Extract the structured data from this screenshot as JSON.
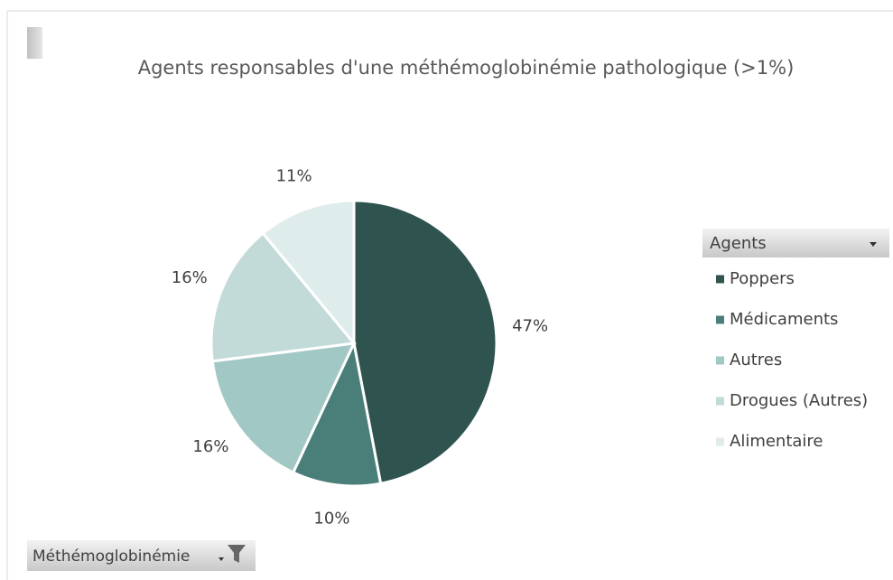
{
  "chart_data": {
    "type": "pie",
    "title": "Agents responsables d'une méthémoglobinémie pathologique (>1%)",
    "legend_title": "Agents",
    "filter_field": "Méthémoglobinémie",
    "categories": [
      "Poppers",
      "Médicaments",
      "Autres",
      "Drogues (Autres)",
      "Alimentaire"
    ],
    "values": [
      47,
      10,
      16,
      16,
      11
    ],
    "value_labels": [
      "47%",
      "10%",
      "16%",
      "16%",
      "11%"
    ],
    "colors": [
      "#2f5450",
      "#4a7e79",
      "#a2c8c5",
      "#c2dad8",
      "#deeceb"
    ],
    "legend": "right"
  }
}
